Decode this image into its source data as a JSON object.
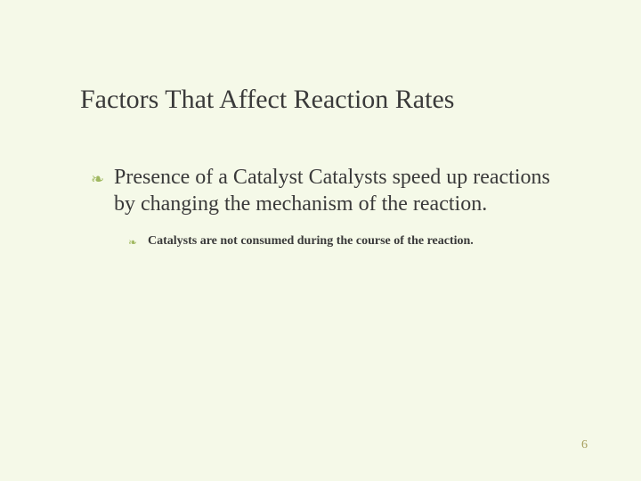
{
  "slide": {
    "background_color": "#f5f9e8",
    "title": "Factors That Affect Reaction Rates",
    "title_color": "#3a3a3a",
    "title_fontsize": 30,
    "bullet_color": "#a0b860",
    "text_color": "#3a3a3a",
    "main_point": {
      "bullet_glyph": "❧",
      "text": "Presence of a Catalyst Catalysts speed up reactions by changing the mechanism of the reaction.",
      "fontsize": 24
    },
    "sub_point": {
      "bullet_glyph": "❧",
      "text": "Catalysts are not consumed during the course of the reaction.",
      "fontsize": 14,
      "font_weight": "bold"
    },
    "page_number": "6",
    "page_number_color": "#a8a060"
  }
}
